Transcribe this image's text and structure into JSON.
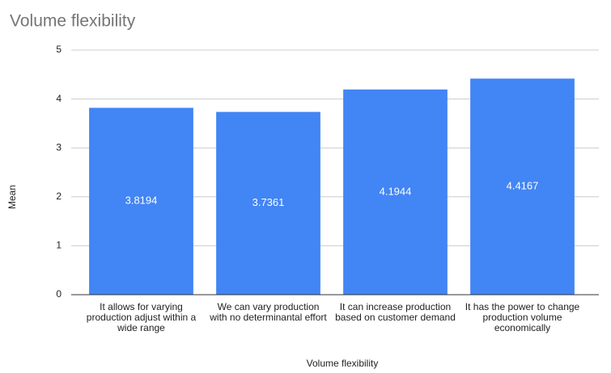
{
  "chart_data": {
    "type": "bar",
    "title": "Volume flexibility",
    "x_label": "Volume flexibility",
    "y_label": "Mean",
    "categories": [
      "It allows for varying production adjust within a wide range",
      "We can vary production with no determinantal effort",
      "It can increase production based on customer demand",
      "It has the power to change production volume economically"
    ],
    "values": [
      3.8194,
      3.7361,
      4.1944,
      4.4167
    ],
    "color": "#4285f4",
    "ylim": [
      0,
      5
    ],
    "yticks": [
      0,
      1,
      2,
      3,
      4,
      5
    ],
    "grid": true,
    "data_labels": true
  }
}
